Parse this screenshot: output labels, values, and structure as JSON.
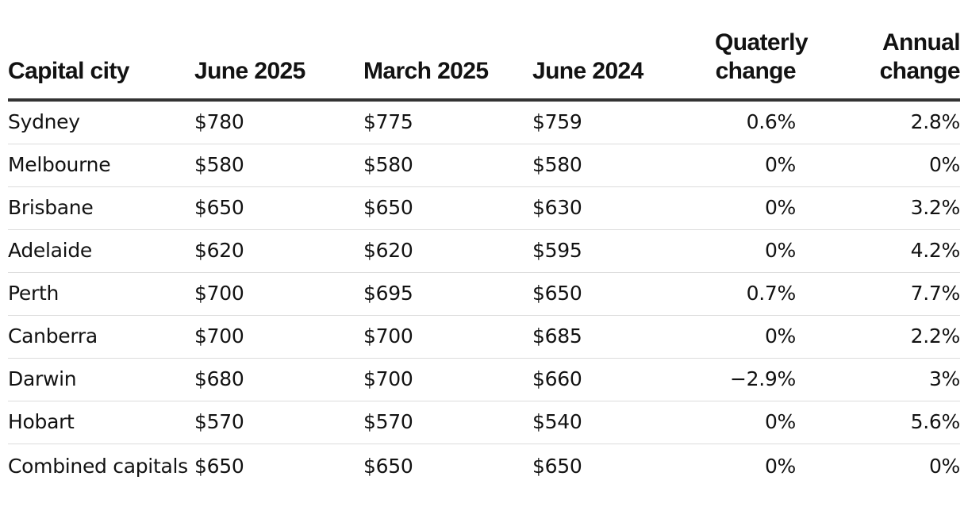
{
  "table": {
    "headers": [
      "Capital city",
      "June 2025",
      "March 2025",
      "June 2024",
      "Quaterly change",
      "Annual change"
    ],
    "rows": [
      [
        "Sydney",
        "$780",
        "$775",
        "$759",
        "0.6%",
        "2.8%"
      ],
      [
        "Melbourne",
        "$580",
        "$580",
        "$580",
        "0%",
        "0%"
      ],
      [
        "Brisbane",
        "$650",
        "$650",
        "$630",
        "0%",
        "3.2%"
      ],
      [
        "Adelaide",
        "$620",
        "$620",
        "$595",
        "0%",
        "4.2%"
      ],
      [
        "Perth",
        "$700",
        "$695",
        "$650",
        "0.7%",
        "7.7%"
      ],
      [
        "Canberra",
        "$700",
        "$700",
        "$685",
        "0%",
        "2.2%"
      ],
      [
        "Darwin",
        "$680",
        "$700",
        "$660",
        "−2.9%",
        "3%"
      ],
      [
        "Hobart",
        "$570",
        "$570",
        "$540",
        "0%",
        "5.6%"
      ],
      [
        "Combined capitals",
        "$650",
        "$650",
        "$650",
        "0%",
        "0%"
      ]
    ]
  },
  "colors": {
    "text": "#121212",
    "header_rule": "#333333",
    "row_rule": "#dcdcdc",
    "background": "#ffffff"
  }
}
